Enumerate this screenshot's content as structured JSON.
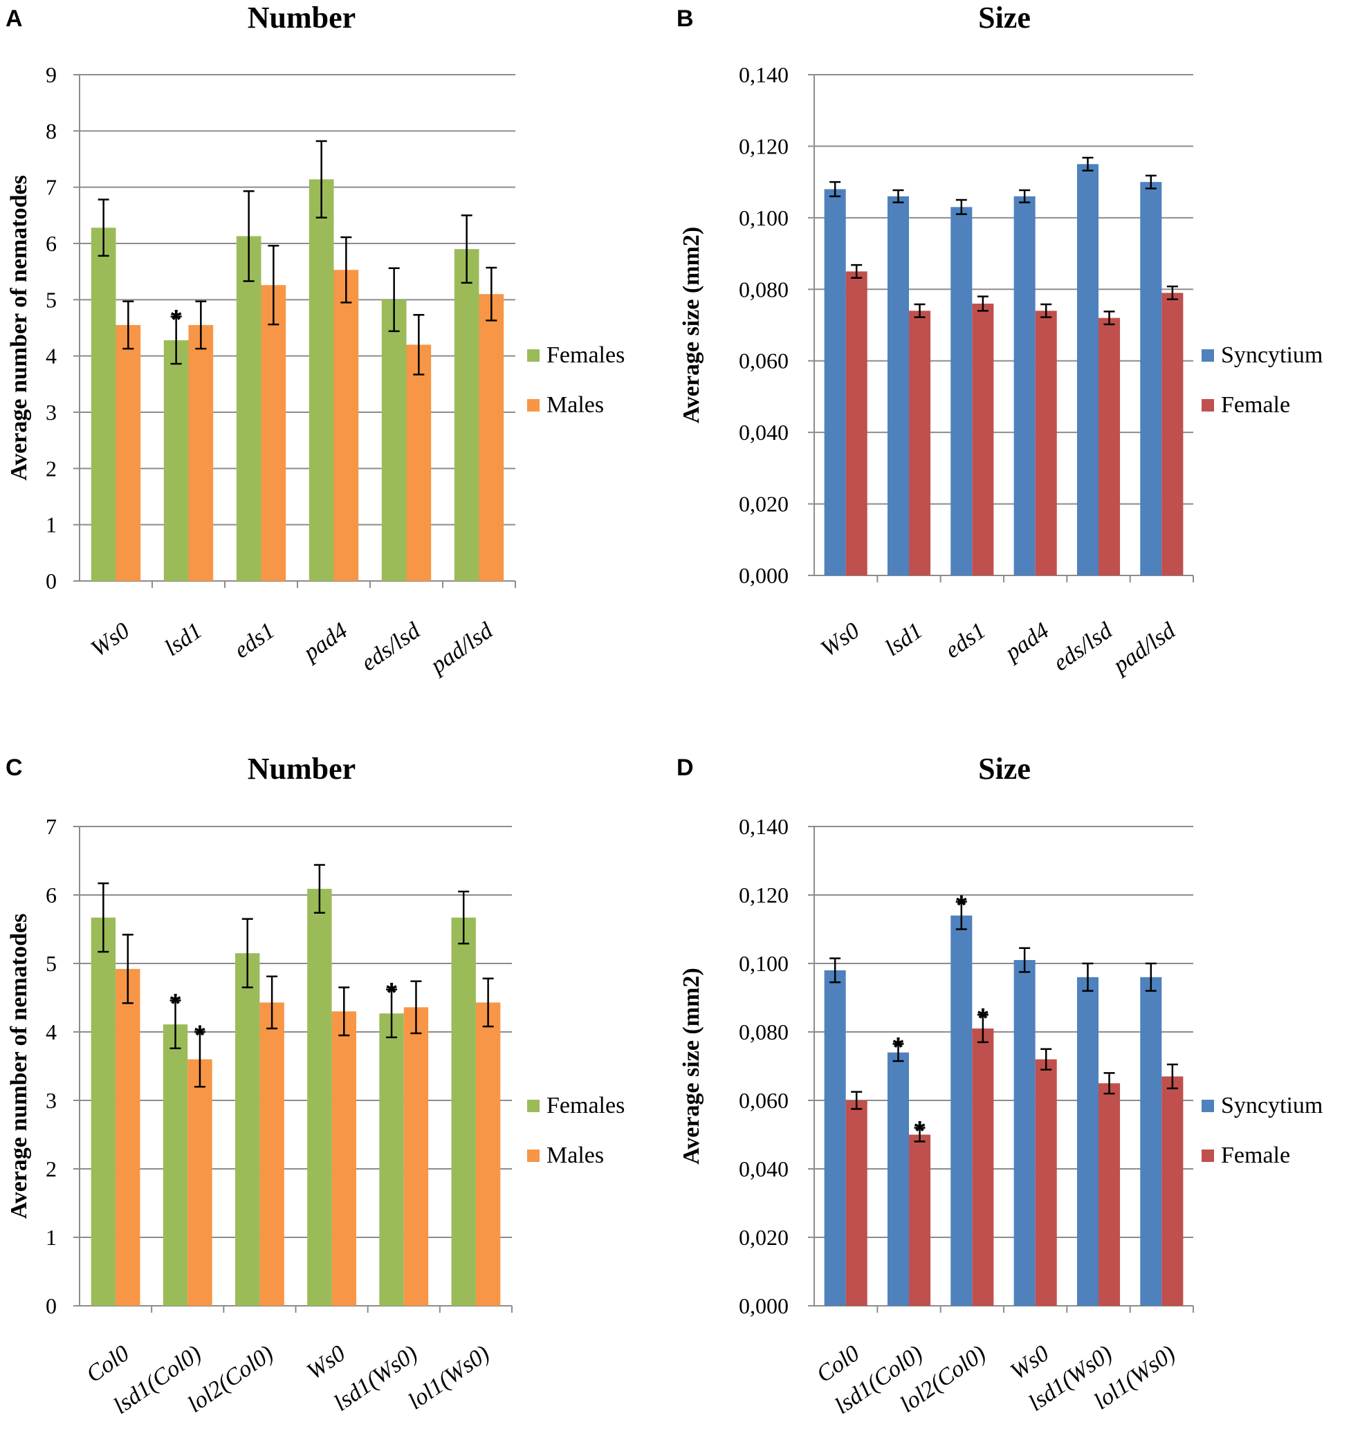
{
  "figure": {
    "panels": [
      "A",
      "B",
      "C",
      "D"
    ]
  },
  "chart_data": [
    {
      "panel": "A",
      "type": "bar",
      "title": "Number",
      "xlabel": "",
      "ylabel": "Average number of nematodes",
      "ylim": [
        0,
        9
      ],
      "yticks": [
        "0",
        "1",
        "2",
        "3",
        "4",
        "5",
        "6",
        "7",
        "8",
        "9"
      ],
      "grid": true,
      "legend": "right",
      "categories": [
        "Ws0",
        "lsd1",
        "eds1",
        "pad4",
        "eds/lsd",
        "pad/lsd"
      ],
      "series": [
        {
          "name": "Females",
          "color": "#9bbb59",
          "values": [
            6.28,
            4.28,
            6.13,
            7.14,
            5.0,
            5.9
          ],
          "errors": [
            0.5,
            0.42,
            0.8,
            0.68,
            0.56,
            0.6
          ],
          "stars": [
            false,
            true,
            false,
            false,
            false,
            false
          ]
        },
        {
          "name": "Males",
          "color": "#f79646",
          "values": [
            4.55,
            4.55,
            5.26,
            5.53,
            4.2,
            5.1
          ],
          "errors": [
            0.42,
            0.42,
            0.7,
            0.58,
            0.53,
            0.47
          ],
          "stars": [
            false,
            false,
            false,
            false,
            false,
            false
          ]
        }
      ]
    },
    {
      "panel": "B",
      "type": "bar",
      "title": "Size",
      "xlabel": "",
      "ylabel": "Average  size (mm2)",
      "ylim": [
        0,
        0.14
      ],
      "yticks": [
        "0,000",
        "0,020",
        "0,040",
        "0,060",
        "0,080",
        "0,100",
        "0,120",
        "0,140"
      ],
      "grid": true,
      "legend": "right",
      "categories": [
        "Ws0",
        "lsd1",
        "eds1",
        "pad4",
        "eds/lsd",
        "pad/lsd"
      ],
      "series": [
        {
          "name": "Syncytium",
          "color": "#4f81bd",
          "values": [
            0.108,
            0.106,
            0.103,
            0.106,
            0.115,
            0.11
          ],
          "errors": [
            0.002,
            0.0017,
            0.002,
            0.0017,
            0.0018,
            0.0018
          ],
          "stars": [
            false,
            false,
            false,
            false,
            false,
            false
          ]
        },
        {
          "name": "Female",
          "color": "#c0504d",
          "values": [
            0.085,
            0.074,
            0.076,
            0.074,
            0.072,
            0.079
          ],
          "errors": [
            0.0018,
            0.0018,
            0.002,
            0.0018,
            0.0018,
            0.0018
          ],
          "stars": [
            false,
            false,
            false,
            false,
            false,
            false
          ]
        }
      ]
    },
    {
      "panel": "C",
      "type": "bar",
      "title": "Number",
      "xlabel": "",
      "ylabel": "Average number of nematodes",
      "ylim": [
        0,
        7
      ],
      "yticks": [
        "0",
        "1",
        "2",
        "3",
        "4",
        "5",
        "6",
        "7"
      ],
      "grid": true,
      "legend": "right",
      "categories": [
        "Col0",
        "lsd1(Col0)",
        "lol2(Col0)",
        "Ws0",
        "lsd1(Ws0)",
        "lol1(Ws0)"
      ],
      "series": [
        {
          "name": "Females",
          "color": "#9bbb59",
          "values": [
            5.67,
            4.11,
            5.15,
            6.09,
            4.27,
            5.67
          ],
          "errors": [
            0.5,
            0.35,
            0.5,
            0.35,
            0.35,
            0.38
          ],
          "stars": [
            false,
            true,
            false,
            false,
            true,
            false
          ]
        },
        {
          "name": "Males",
          "color": "#f79646",
          "values": [
            4.92,
            3.6,
            4.43,
            4.3,
            4.36,
            4.43
          ],
          "errors": [
            0.5,
            0.4,
            0.38,
            0.35,
            0.38,
            0.35
          ],
          "stars": [
            false,
            true,
            false,
            false,
            false,
            false
          ]
        }
      ]
    },
    {
      "panel": "D",
      "type": "bar",
      "title": "Size",
      "xlabel": "",
      "ylabel": "Average  size (mm2)",
      "ylim": [
        0,
        0.14
      ],
      "yticks": [
        "0,000",
        "0,020",
        "0,040",
        "0,060",
        "0,080",
        "0,100",
        "0,120",
        "0,140"
      ],
      "grid": true,
      "legend": "right",
      "categories": [
        "Col0",
        "lsd1(Col0)",
        "lol2(Col0)",
        "Ws0",
        "lsd1(Ws0)",
        "lol1(Ws0)"
      ],
      "series": [
        {
          "name": "Syncytium",
          "color": "#4f81bd",
          "values": [
            0.098,
            0.074,
            0.114,
            0.101,
            0.096,
            0.096
          ],
          "errors": [
            0.0035,
            0.0025,
            0.004,
            0.0035,
            0.004,
            0.004
          ],
          "stars": [
            false,
            true,
            true,
            false,
            false,
            false
          ]
        },
        {
          "name": "Female",
          "color": "#c0504d",
          "values": [
            0.06,
            0.05,
            0.081,
            0.072,
            0.065,
            0.067
          ],
          "errors": [
            0.0025,
            0.002,
            0.004,
            0.003,
            0.003,
            0.0035
          ],
          "stars": [
            false,
            true,
            true,
            false,
            false,
            false
          ]
        }
      ]
    }
  ]
}
